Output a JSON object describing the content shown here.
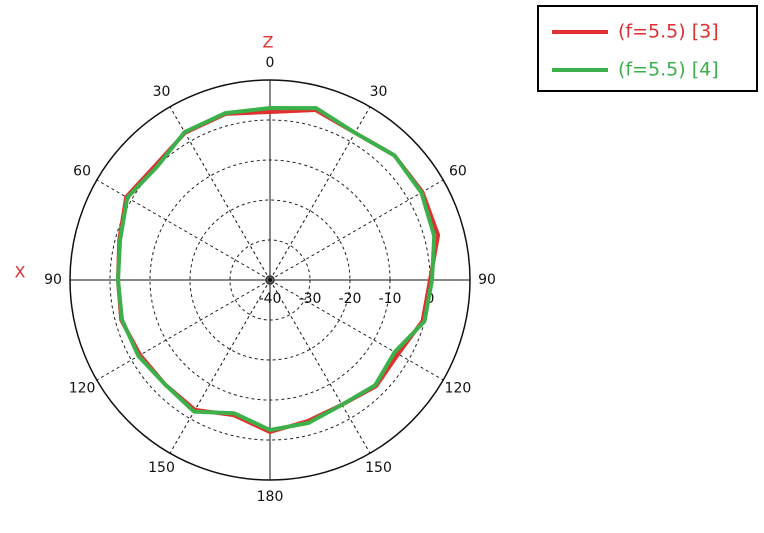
{
  "chart_data": {
    "type": "polar",
    "axis_labels": [
      "Z",
      "X"
    ],
    "x": [
      0,
      15,
      30,
      45,
      60,
      75,
      90,
      105,
      120,
      135,
      150,
      165,
      180,
      195,
      210,
      225,
      240,
      255,
      270,
      285,
      300,
      315,
      330,
      345
    ],
    "xticks": [
      0,
      30,
      60,
      90,
      120,
      150,
      180,
      {
        "value": 210,
        "label": "150"
      },
      {
        "value": 240,
        "label": "120"
      },
      {
        "value": 270,
        "label": "90"
      },
      {
        "value": 300,
        "label": "60"
      },
      {
        "value": 330,
        "label": "30"
      }
    ],
    "rlim": [
      -40,
      10
    ],
    "rticks": [
      -40,
      -30,
      -20,
      -10,
      0
    ],
    "grid": true,
    "legend": "top-right",
    "series": [
      {
        "name": "(f=5.5) [3]",
        "color": "#e03030",
        "values": [
          2,
          4,
          2.5,
          4,
          4,
          3.5,
          0,
          -0.5,
          -3,
          -2.5,
          -4,
          -3.5,
          -2,
          -5,
          -2.5,
          -3,
          -2.5,
          -1.5,
          -2,
          -1,
          1.5,
          0.5,
          2.5,
          3
        ]
      },
      {
        "name": "(f=5.5) [4]",
        "color": "#3cb04a",
        "values": [
          3,
          4.5,
          2.5,
          4,
          3.7,
          2.5,
          0.5,
          0,
          -4,
          -2.8,
          -4,
          -3,
          -2.5,
          -5.5,
          -2,
          -3,
          -2,
          -1.7,
          -2,
          -1.2,
          1.2,
          0,
          2.7,
          3.2
        ]
      }
    ]
  }
}
